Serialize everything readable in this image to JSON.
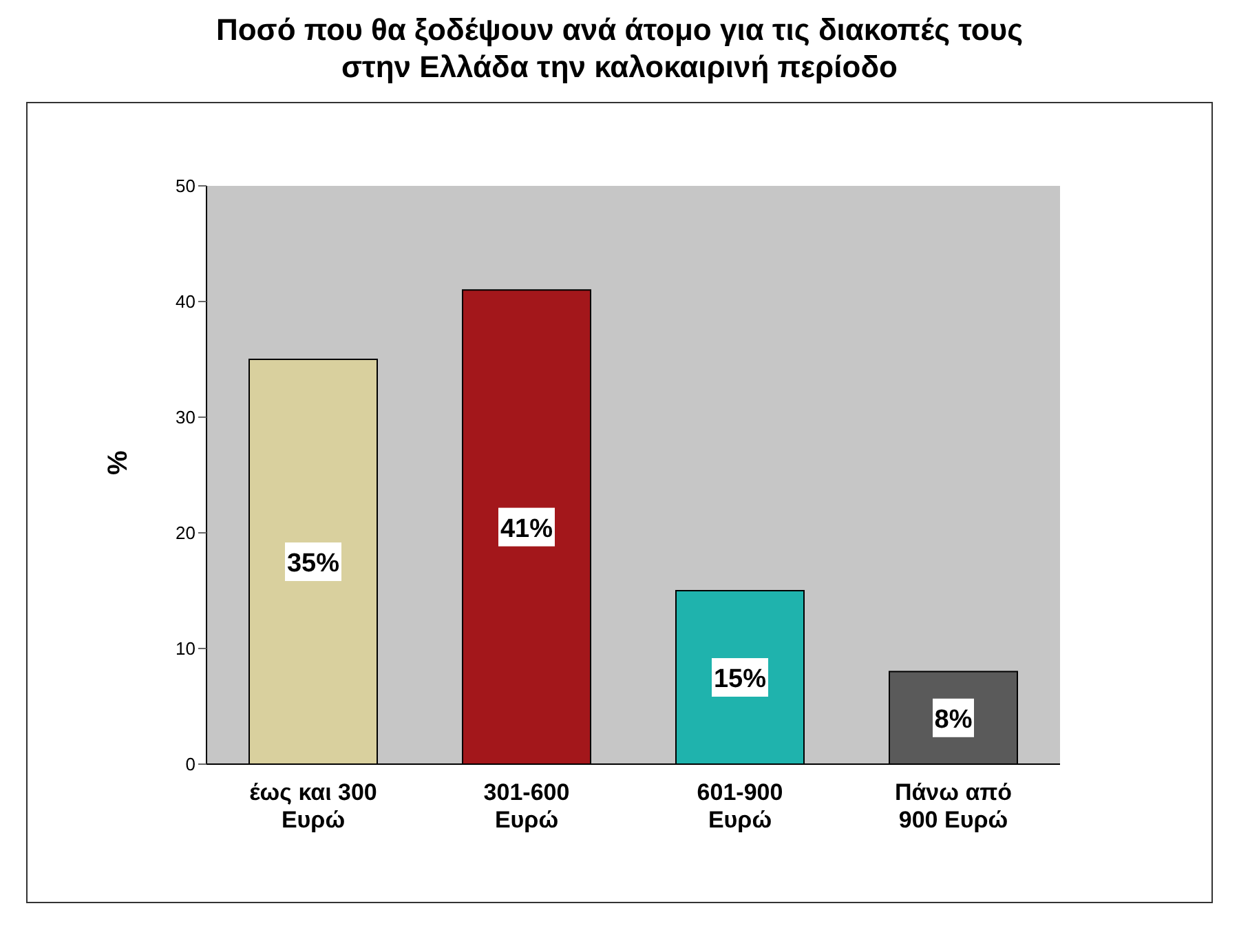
{
  "chart_data": {
    "type": "bar",
    "title": "Ποσό που θα ξοδέψουν ανά άτομο για τις διακοπές τους στην Ελλάδα την καλοκαιρινή περίοδο",
    "ylabel": "%",
    "categories": [
      "έως και 300 Ευρώ",
      "301-600 Ευρώ",
      "601-900 Ευρώ",
      "Πάνω από 900 Ευρώ"
    ],
    "values": [
      35,
      41,
      15,
      8
    ],
    "colors": [
      "#d9d09e",
      "#a3171b",
      "#1fb3ad",
      "#5a5a5a"
    ],
    "value_labels": [
      "35%",
      "41%",
      "15%",
      "8%"
    ],
    "ylim": [
      0,
      50
    ],
    "yticks": [
      0,
      10,
      20,
      30,
      40,
      50
    ]
  }
}
